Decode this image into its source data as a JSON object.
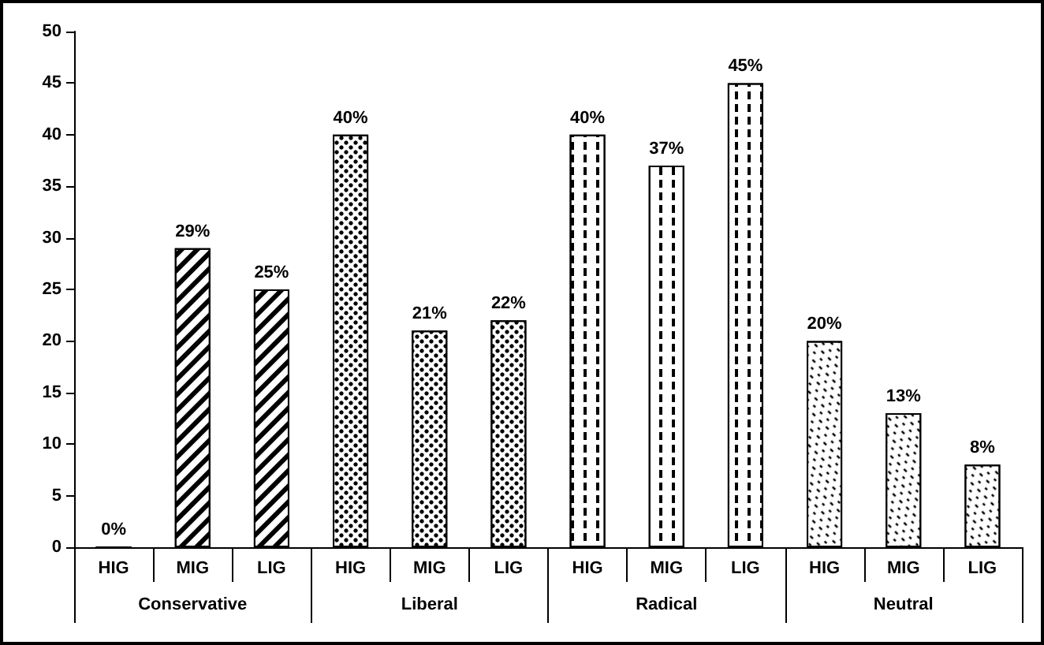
{
  "chart_data": {
    "type": "bar",
    "stacked": true,
    "categories": [
      "HIG",
      "MIG",
      "LIG",
      "HIG",
      "MIG",
      "LIG",
      "HIG",
      "MIG",
      "LIG",
      "HIG",
      "MIG",
      "LIG"
    ],
    "series": [
      {
        "name": "Conservative",
        "color": "#000000",
        "values": [
          0,
          29,
          25,
          null,
          null,
          null,
          null,
          null,
          null,
          null,
          null,
          null
        ],
        "value_labels": [
          "0%",
          "29%",
          "25%",
          null,
          null,
          null,
          null,
          null,
          null,
          null,
          null,
          null
        ]
      },
      {
        "name": "Liberal",
        "color": "#000000",
        "values": [
          null,
          null,
          null,
          40,
          21,
          22,
          null,
          null,
          null,
          null,
          null,
          null
        ],
        "value_labels": [
          null,
          null,
          null,
          "40%",
          "21%",
          "22%",
          null,
          null,
          null,
          null,
          null,
          null
        ]
      },
      {
        "name": "Radical",
        "color": "#000000",
        "values": [
          null,
          null,
          null,
          null,
          null,
          null,
          40,
          37,
          45,
          null,
          null,
          null
        ],
        "value_labels": [
          null,
          null,
          null,
          null,
          null,
          null,
          "40%",
          "37%",
          "45%",
          null,
          null,
          null
        ]
      },
      {
        "name": "Neutral",
        "color": "#000000",
        "values": [
          null,
          null,
          null,
          null,
          null,
          null,
          null,
          null,
          null,
          20,
          13,
          8
        ],
        "value_labels": [
          null,
          null,
          null,
          null,
          null,
          null,
          null,
          null,
          null,
          "20%",
          "13%",
          "8%"
        ]
      }
    ],
    "ylim": [
      0,
      50
    ],
    "yticks": [
      0,
      5,
      10,
      15,
      20,
      25,
      30,
      35,
      40,
      45,
      50
    ],
    "grid": false,
    "legend": "bottom"
  }
}
